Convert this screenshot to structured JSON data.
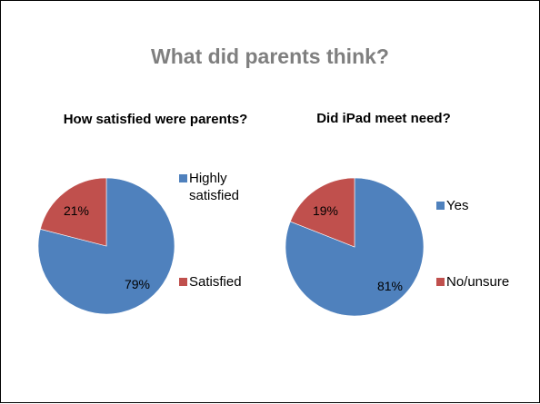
{
  "slide": {
    "title": "What did parents think?"
  },
  "chart_data": [
    {
      "type": "pie",
      "title": "How satisfied were parents?",
      "categories": [
        "Highly satisfied",
        "Satisfied"
      ],
      "values": [
        79,
        21
      ],
      "labels": [
        "79%",
        "21%"
      ],
      "colors": [
        "#4f81bd",
        "#c0504d"
      ],
      "legend": "right"
    },
    {
      "type": "pie",
      "title": "Did iPad meet need?",
      "categories": [
        "Yes",
        "No/unsure"
      ],
      "values": [
        81,
        19
      ],
      "labels": [
        "81%",
        "19%"
      ],
      "colors": [
        "#4f81bd",
        "#c0504d"
      ],
      "legend": "right"
    }
  ]
}
